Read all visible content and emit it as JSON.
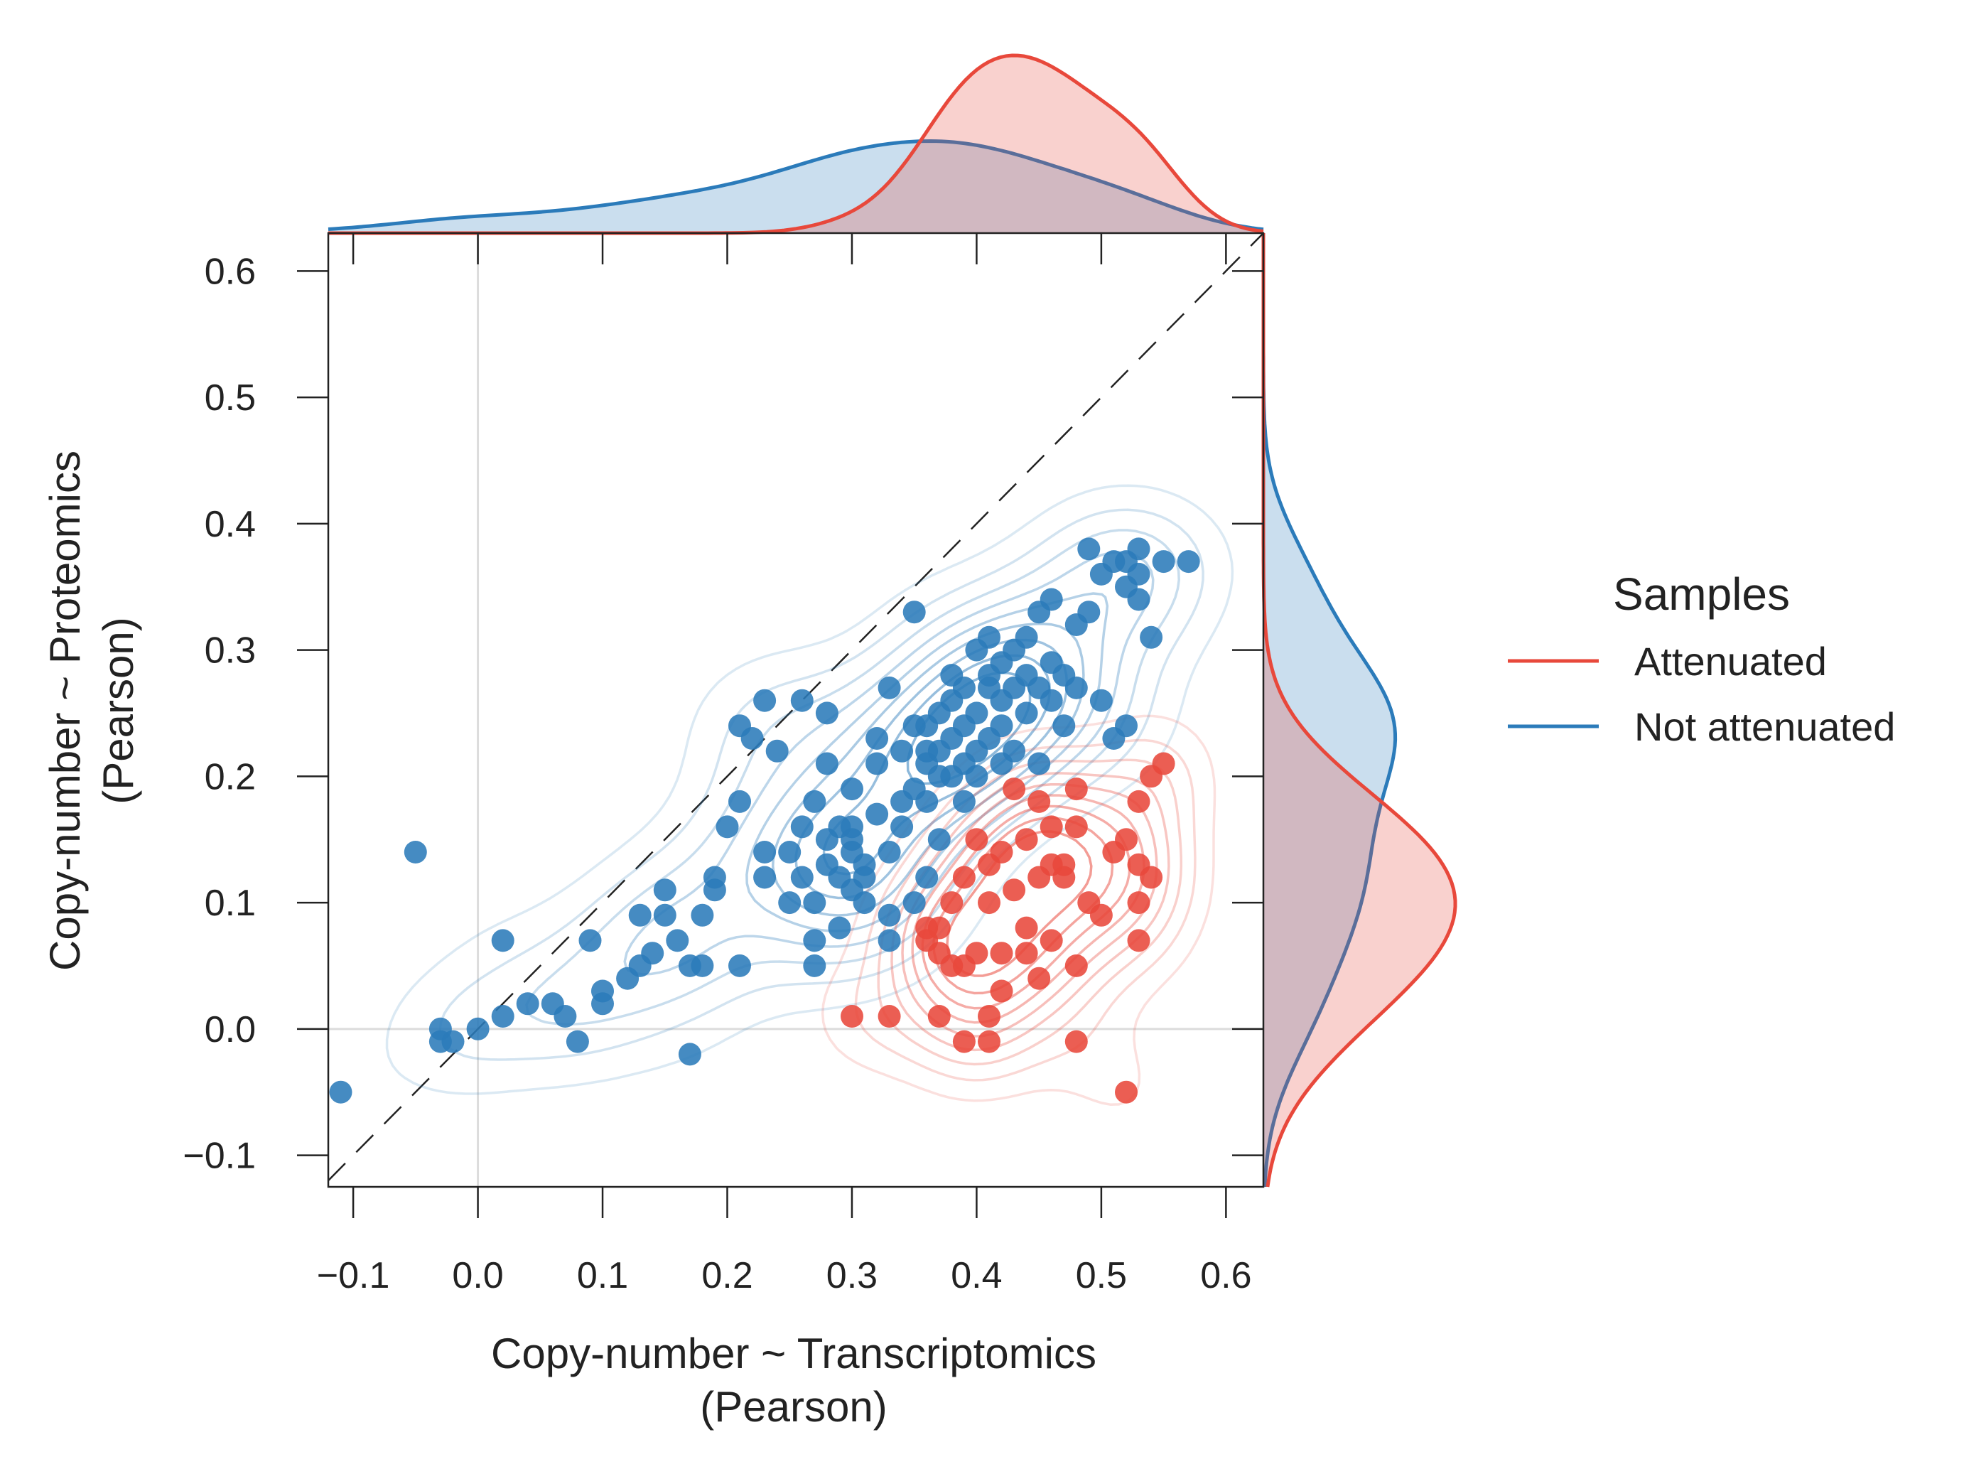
{
  "chart_data": {
    "type": "scatter",
    "xlabel": [
      "Copy-number ~ Transcriptomics",
      "(Pearson)"
    ],
    "ylabel": [
      "Copy-number ~ Proteomics",
      "(Pearson)"
    ],
    "xlim": [
      -0.12,
      0.63
    ],
    "ylim": [
      -0.125,
      0.63
    ],
    "xticks": [
      -0.1,
      0.0,
      0.1,
      0.2,
      0.3,
      0.4,
      0.5,
      0.6
    ],
    "yticks": [
      -0.1,
      0.0,
      0.1,
      0.2,
      0.3,
      0.4,
      0.5,
      0.6
    ],
    "xtick_labels": [
      "−0.1",
      "0.0",
      "0.1",
      "0.2",
      "0.3",
      "0.4",
      "0.5",
      "0.6"
    ],
    "ytick_labels": [
      "−0.1",
      "0.0",
      "0.1",
      "0.2",
      "0.3",
      "0.4",
      "0.5",
      "0.6"
    ],
    "diagonal_reference": true,
    "zero_reference_lines": true,
    "marginal_density": true,
    "contours": true,
    "legend": {
      "title": "Samples",
      "position": "right",
      "entries": [
        "Attenuated",
        "Not attenuated"
      ]
    },
    "series": [
      {
        "name": "Attenuated",
        "color": "#e8483b",
        "points": [
          [
            0.3,
            0.01
          ],
          [
            0.33,
            0.01
          ],
          [
            0.37,
            0.01
          ],
          [
            0.41,
            0.01
          ],
          [
            0.39,
            -0.01
          ],
          [
            0.41,
            -0.01
          ],
          [
            0.48,
            -0.01
          ],
          [
            0.52,
            -0.05
          ],
          [
            0.42,
            0.03
          ],
          [
            0.36,
            0.07
          ],
          [
            0.38,
            0.05
          ],
          [
            0.39,
            0.05
          ],
          [
            0.4,
            0.06
          ],
          [
            0.42,
            0.06
          ],
          [
            0.36,
            0.08
          ],
          [
            0.37,
            0.06
          ],
          [
            0.45,
            0.04
          ],
          [
            0.44,
            0.06
          ],
          [
            0.46,
            0.07
          ],
          [
            0.44,
            0.08
          ],
          [
            0.48,
            0.05
          ],
          [
            0.53,
            0.07
          ],
          [
            0.53,
            0.1
          ],
          [
            0.49,
            0.1
          ],
          [
            0.5,
            0.09
          ],
          [
            0.41,
            0.1
          ],
          [
            0.38,
            0.1
          ],
          [
            0.39,
            0.12
          ],
          [
            0.43,
            0.11
          ],
          [
            0.45,
            0.12
          ],
          [
            0.46,
            0.13
          ],
          [
            0.47,
            0.12
          ],
          [
            0.47,
            0.13
          ],
          [
            0.44,
            0.15
          ],
          [
            0.48,
            0.16
          ],
          [
            0.51,
            0.14
          ],
          [
            0.53,
            0.13
          ],
          [
            0.54,
            0.12
          ],
          [
            0.52,
            0.15
          ],
          [
            0.53,
            0.18
          ],
          [
            0.54,
            0.2
          ],
          [
            0.55,
            0.21
          ],
          [
            0.48,
            0.19
          ],
          [
            0.43,
            0.19
          ],
          [
            0.45,
            0.18
          ],
          [
            0.46,
            0.16
          ],
          [
            0.42,
            0.14
          ],
          [
            0.4,
            0.15
          ],
          [
            0.37,
            0.08
          ],
          [
            0.41,
            0.13
          ]
        ]
      },
      {
        "name": "Not attenuated",
        "color": "#2b7bba",
        "points": [
          [
            -0.11,
            -0.05
          ],
          [
            -0.05,
            0.14
          ],
          [
            -0.03,
            0.0
          ],
          [
            -0.03,
            -0.01
          ],
          [
            -0.02,
            -0.01
          ],
          [
            0.0,
            0.0
          ],
          [
            0.02,
            0.07
          ],
          [
            0.02,
            0.01
          ],
          [
            0.04,
            0.02
          ],
          [
            0.06,
            0.02
          ],
          [
            0.07,
            0.01
          ],
          [
            0.08,
            -0.01
          ],
          [
            0.09,
            0.07
          ],
          [
            0.1,
            0.02
          ],
          [
            0.1,
            0.03
          ],
          [
            0.12,
            0.04
          ],
          [
            0.13,
            0.05
          ],
          [
            0.13,
            0.09
          ],
          [
            0.14,
            0.06
          ],
          [
            0.15,
            0.11
          ],
          [
            0.15,
            0.09
          ],
          [
            0.16,
            0.07
          ],
          [
            0.17,
            0.05
          ],
          [
            0.17,
            -0.02
          ],
          [
            0.18,
            0.05
          ],
          [
            0.18,
            0.09
          ],
          [
            0.19,
            0.11
          ],
          [
            0.19,
            0.12
          ],
          [
            0.2,
            0.16
          ],
          [
            0.21,
            0.18
          ],
          [
            0.21,
            0.05
          ],
          [
            0.21,
            0.24
          ],
          [
            0.22,
            0.23
          ],
          [
            0.23,
            0.26
          ],
          [
            0.23,
            0.14
          ],
          [
            0.23,
            0.12
          ],
          [
            0.24,
            0.22
          ],
          [
            0.25,
            0.14
          ],
          [
            0.26,
            0.26
          ],
          [
            0.26,
            0.16
          ],
          [
            0.27,
            0.1
          ],
          [
            0.27,
            0.18
          ],
          [
            0.27,
            0.05
          ],
          [
            0.27,
            0.07
          ],
          [
            0.28,
            0.15
          ],
          [
            0.28,
            0.25
          ],
          [
            0.28,
            0.21
          ],
          [
            0.29,
            0.08
          ],
          [
            0.29,
            0.12
          ],
          [
            0.29,
            0.16
          ],
          [
            0.3,
            0.11
          ],
          [
            0.3,
            0.15
          ],
          [
            0.3,
            0.16
          ],
          [
            0.3,
            0.14
          ],
          [
            0.3,
            0.19
          ],
          [
            0.31,
            0.1
          ],
          [
            0.31,
            0.12
          ],
          [
            0.32,
            0.21
          ],
          [
            0.32,
            0.23
          ],
          [
            0.32,
            0.17
          ],
          [
            0.33,
            0.27
          ],
          [
            0.33,
            0.14
          ],
          [
            0.33,
            0.09
          ],
          [
            0.34,
            0.18
          ],
          [
            0.34,
            0.22
          ],
          [
            0.35,
            0.1
          ],
          [
            0.35,
            0.33
          ],
          [
            0.35,
            0.24
          ],
          [
            0.36,
            0.18
          ],
          [
            0.36,
            0.21
          ],
          [
            0.36,
            0.22
          ],
          [
            0.37,
            0.2
          ],
          [
            0.37,
            0.25
          ],
          [
            0.37,
            0.15
          ],
          [
            0.38,
            0.28
          ],
          [
            0.38,
            0.23
          ],
          [
            0.38,
            0.26
          ],
          [
            0.39,
            0.21
          ],
          [
            0.39,
            0.24
          ],
          [
            0.39,
            0.18
          ],
          [
            0.4,
            0.3
          ],
          [
            0.4,
            0.25
          ],
          [
            0.4,
            0.22
          ],
          [
            0.41,
            0.28
          ],
          [
            0.41,
            0.27
          ],
          [
            0.41,
            0.31
          ],
          [
            0.42,
            0.26
          ],
          [
            0.42,
            0.24
          ],
          [
            0.42,
            0.29
          ],
          [
            0.43,
            0.3
          ],
          [
            0.43,
            0.27
          ],
          [
            0.43,
            0.22
          ],
          [
            0.44,
            0.28
          ],
          [
            0.44,
            0.25
          ],
          [
            0.44,
            0.31
          ],
          [
            0.45,
            0.27
          ],
          [
            0.45,
            0.33
          ],
          [
            0.45,
            0.21
          ],
          [
            0.46,
            0.26
          ],
          [
            0.46,
            0.29
          ],
          [
            0.46,
            0.34
          ],
          [
            0.47,
            0.28
          ],
          [
            0.47,
            0.24
          ],
          [
            0.48,
            0.32
          ],
          [
            0.48,
            0.27
          ],
          [
            0.49,
            0.33
          ],
          [
            0.49,
            0.38
          ],
          [
            0.5,
            0.36
          ],
          [
            0.5,
            0.26
          ],
          [
            0.51,
            0.23
          ],
          [
            0.52,
            0.24
          ],
          [
            0.52,
            0.35
          ],
          [
            0.53,
            0.38
          ],
          [
            0.53,
            0.34
          ],
          [
            0.54,
            0.31
          ],
          [
            0.55,
            0.37
          ],
          [
            0.57,
            0.37
          ],
          [
            0.51,
            0.37
          ],
          [
            0.52,
            0.37
          ],
          [
            0.53,
            0.36
          ],
          [
            0.37,
            0.22
          ],
          [
            0.38,
            0.2
          ],
          [
            0.4,
            0.2
          ],
          [
            0.41,
            0.23
          ],
          [
            0.39,
            0.27
          ],
          [
            0.42,
            0.21
          ],
          [
            0.36,
            0.24
          ],
          [
            0.35,
            0.19
          ],
          [
            0.34,
            0.16
          ],
          [
            0.31,
            0.13
          ],
          [
            0.28,
            0.13
          ],
          [
            0.26,
            0.12
          ],
          [
            0.25,
            0.1
          ],
          [
            0.33,
            0.07
          ],
          [
            0.36,
            0.12
          ]
        ]
      }
    ]
  }
}
